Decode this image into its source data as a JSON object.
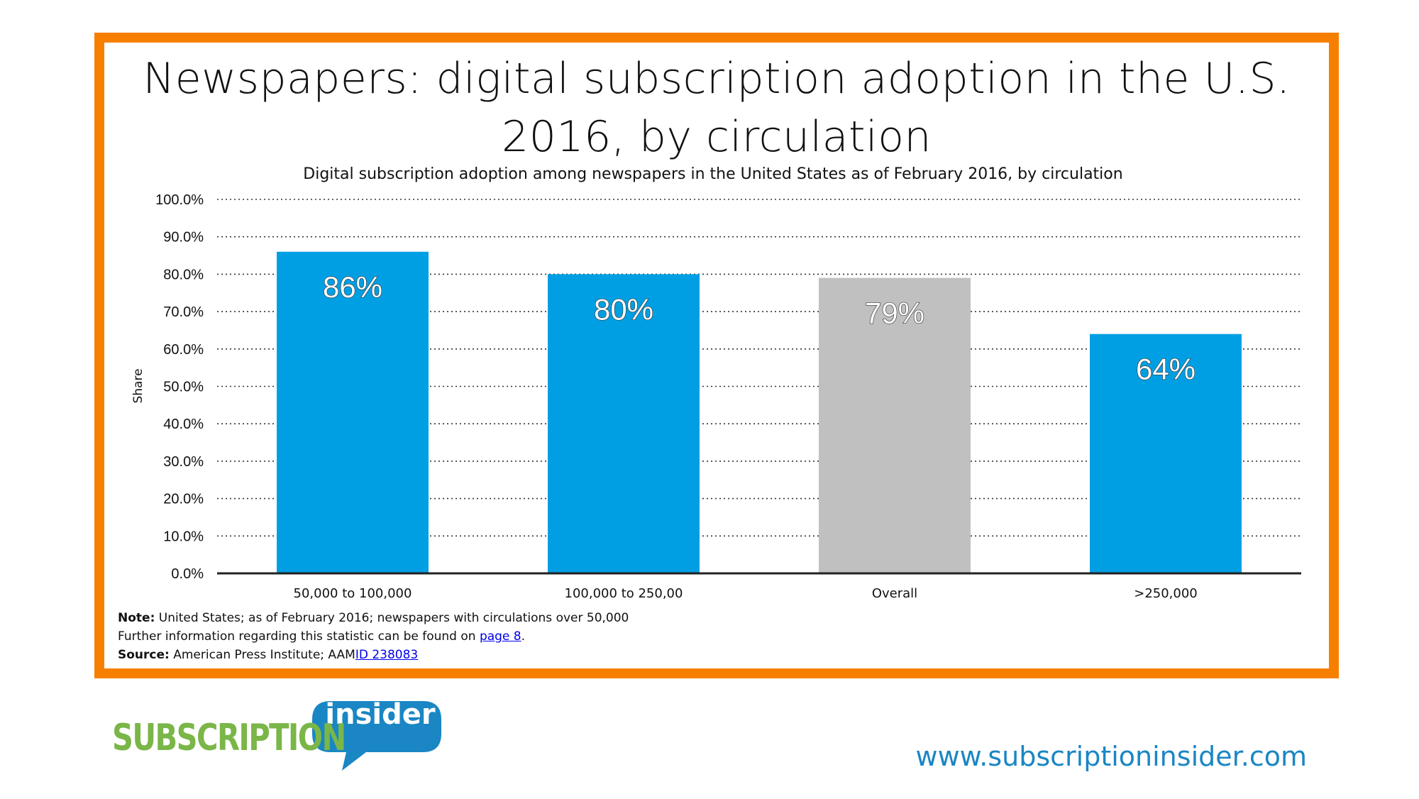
{
  "title": "Newspapers: digital subscription adoption in the U.S. 2016, by circulation",
  "chart_data": {
    "type": "bar",
    "subtitle": "Digital subscription adoption among newspapers in the United States as of February 2016, by circulation",
    "ylabel": "Share",
    "ylim": [
      0,
      100
    ],
    "yticks": [
      "0.0%",
      "10.0%",
      "20.0%",
      "30.0%",
      "40.0%",
      "50.0%",
      "60.0%",
      "70.0%",
      "80.0%",
      "90.0%",
      "100.0%"
    ],
    "categories": [
      "50,000 to 100,000",
      "100,000 to 250,00",
      "Overall",
      ">250,000"
    ],
    "values": [
      86,
      80,
      79,
      64
    ],
    "data_labels": [
      "86%",
      "80%",
      "79%",
      "64%"
    ],
    "bar_colors": [
      "#009fe3",
      "#009fe3",
      "#c0c0c0",
      "#009fe3"
    ],
    "grid": "dotted horizontal"
  },
  "notes": {
    "note_label": "Note:",
    "note_text": "United States; as of February 2016; newspapers with circulations over 50,000",
    "further_text": "Further information regarding this statistic can be found on",
    "further_link": "page 8",
    "further_end": ".",
    "source_label": "Source:",
    "source_text": "American Press Institute; AAM",
    "source_link": "ID 238083"
  },
  "logo": {
    "word1": "SUBSCRIPTION",
    "word2": "insider"
  },
  "site_url": "www.subscriptioninsider.com",
  "colors": {
    "frame": "#f77f00",
    "bar_primary": "#009fe3",
    "bar_overall": "#c0c0c0",
    "logo_green": "#7ab648",
    "logo_blue": "#1a86c4"
  }
}
